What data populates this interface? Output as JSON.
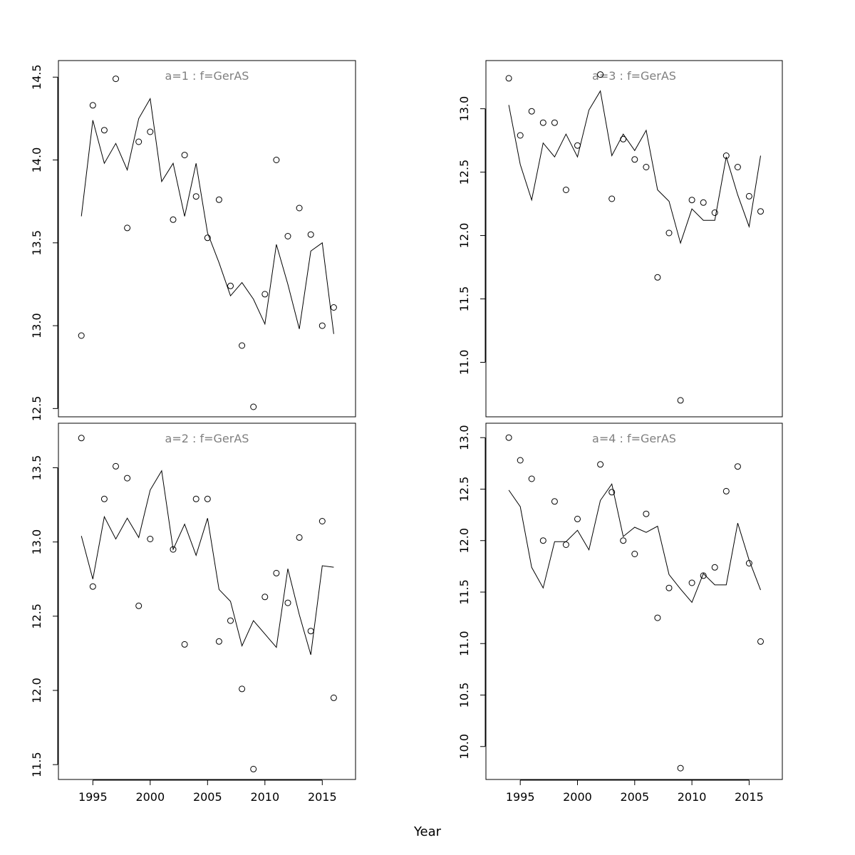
{
  "figure": {
    "xlabel": "Year"
  },
  "chart_data": [
    {
      "type": "line",
      "title": "a=1  :  f=GerAS",
      "x": [
        1994,
        1995,
        1996,
        1997,
        1998,
        1999,
        2000,
        2001,
        2002,
        2003,
        2004,
        2005,
        2006,
        2007,
        2008,
        2009,
        2010,
        2011,
        2012,
        2013,
        2014,
        2015,
        2016
      ],
      "series": [
        {
          "kind": "points",
          "points": [
            [
              1994,
              12.94
            ],
            [
              1995,
              14.33
            ],
            [
              1996,
              14.18
            ],
            [
              1997,
              14.49
            ],
            [
              1998,
              13.59
            ],
            [
              1999,
              14.11
            ],
            [
              2000,
              14.17
            ],
            [
              2002,
              13.64
            ],
            [
              2003,
              14.03
            ],
            [
              2004,
              13.78
            ],
            [
              2005,
              13.53
            ],
            [
              2006,
              13.76
            ],
            [
              2007,
              13.24
            ],
            [
              2008,
              12.88
            ],
            [
              2009,
              12.51
            ],
            [
              2010,
              13.19
            ],
            [
              2011,
              14.0
            ],
            [
              2012,
              13.54
            ],
            [
              2013,
              13.71
            ],
            [
              2014,
              13.55
            ],
            [
              2015,
              13.0
            ],
            [
              2016,
              13.11
            ]
          ]
        },
        {
          "kind": "line",
          "values": [
            13.66,
            14.24,
            13.98,
            14.1,
            13.94,
            14.25,
            14.37,
            13.87,
            13.98,
            13.66,
            13.98,
            13.56,
            13.38,
            13.18,
            13.26,
            13.16,
            13.01,
            13.49,
            13.25,
            12.98,
            13.45,
            13.5,
            12.95
          ]
        }
      ],
      "xlim": [
        1992.0,
        2017.9
      ],
      "ylim": [
        12.45,
        14.6
      ],
      "yticks": [
        12.5,
        13.0,
        13.5,
        14.0,
        14.5
      ],
      "ytick_labels": [
        "12.5",
        "13.0",
        "13.5",
        "14.0",
        "14.5"
      ],
      "xticks": [],
      "xtick_labels": []
    },
    {
      "type": "line",
      "title": "a=2  :  f=GerAS",
      "x": [
        1994,
        1995,
        1996,
        1997,
        1998,
        1999,
        2000,
        2001,
        2002,
        2003,
        2004,
        2005,
        2006,
        2007,
        2008,
        2009,
        2010,
        2011,
        2012,
        2013,
        2014,
        2015,
        2016
      ],
      "series": [
        {
          "kind": "points",
          "points": [
            [
              1994,
              13.7
            ],
            [
              1995,
              12.7
            ],
            [
              1996,
              13.29
            ],
            [
              1997,
              13.51
            ],
            [
              1998,
              13.43
            ],
            [
              1999,
              12.57
            ],
            [
              2000,
              13.02
            ],
            [
              2002,
              12.95
            ],
            [
              2003,
              12.31
            ],
            [
              2004,
              13.29
            ],
            [
              2005,
              13.29
            ],
            [
              2006,
              12.33
            ],
            [
              2007,
              12.47
            ],
            [
              2008,
              12.01
            ],
            [
              2009,
              11.47
            ],
            [
              2010,
              12.63
            ],
            [
              2011,
              12.79
            ],
            [
              2012,
              12.59
            ],
            [
              2013,
              13.03
            ],
            [
              2014,
              12.4
            ],
            [
              2015,
              13.14
            ],
            [
              2016,
              11.95
            ]
          ]
        },
        {
          "kind": "line",
          "values": [
            13.04,
            12.75,
            13.17,
            13.02,
            13.16,
            13.03,
            13.35,
            13.48,
            12.95,
            13.12,
            12.91,
            13.16,
            12.68,
            12.6,
            12.3,
            12.47,
            12.38,
            12.29,
            12.82,
            12.51,
            12.24,
            12.84,
            12.83
          ]
        }
      ],
      "xlim": [
        1992.0,
        2017.9
      ],
      "ylim": [
        11.4,
        13.8
      ],
      "yticks": [
        11.5,
        12.0,
        12.5,
        13.0,
        13.5
      ],
      "ytick_labels": [
        "11.5",
        "12.0",
        "12.5",
        "13.0",
        "13.5"
      ],
      "xticks": [
        1995,
        2000,
        2005,
        2010,
        2015
      ],
      "xtick_labels": [
        "1995",
        "2000",
        "2005",
        "2010",
        "2015"
      ]
    },
    {
      "type": "line",
      "title": "a=3  :  f=GerAS",
      "x": [
        1994,
        1995,
        1996,
        1997,
        1998,
        1999,
        2000,
        2001,
        2002,
        2003,
        2004,
        2005,
        2006,
        2007,
        2008,
        2009,
        2010,
        2011,
        2012,
        2013,
        2014,
        2015,
        2016
      ],
      "series": [
        {
          "kind": "points",
          "points": [
            [
              1994,
              13.24
            ],
            [
              1995,
              12.79
            ],
            [
              1996,
              12.98
            ],
            [
              1997,
              12.89
            ],
            [
              1998,
              12.89
            ],
            [
              1999,
              12.36
            ],
            [
              2000,
              12.71
            ],
            [
              2002,
              13.27
            ],
            [
              2003,
              12.29
            ],
            [
              2004,
              12.76
            ],
            [
              2005,
              12.6
            ],
            [
              2006,
              12.54
            ],
            [
              2007,
              11.67
            ],
            [
              2008,
              12.02
            ],
            [
              2009,
              10.7
            ],
            [
              2010,
              12.28
            ],
            [
              2011,
              12.26
            ],
            [
              2012,
              12.18
            ],
            [
              2013,
              12.63
            ],
            [
              2014,
              12.54
            ],
            [
              2015,
              12.31
            ],
            [
              2016,
              12.19
            ]
          ]
        },
        {
          "kind": "line",
          "values": [
            13.03,
            12.56,
            12.28,
            12.73,
            12.62,
            12.8,
            12.62,
            12.99,
            13.14,
            12.63,
            12.8,
            12.67,
            12.83,
            12.36,
            12.27,
            11.94,
            12.21,
            12.12,
            12.12,
            12.62,
            12.32,
            12.07,
            12.63
          ]
        }
      ],
      "xlim": [
        1992.0,
        2017.9
      ],
      "ylim": [
        10.57,
        13.38
      ],
      "yticks": [
        11.0,
        11.5,
        12.0,
        12.5,
        13.0
      ],
      "ytick_labels": [
        "11.0",
        "11.5",
        "12.0",
        "12.5",
        "13.0"
      ],
      "xticks": [],
      "xtick_labels": []
    },
    {
      "type": "line",
      "title": "a=4  :  f=GerAS",
      "x": [
        1994,
        1995,
        1996,
        1997,
        1998,
        1999,
        2000,
        2001,
        2002,
        2003,
        2004,
        2005,
        2006,
        2007,
        2008,
        2009,
        2010,
        2011,
        2012,
        2013,
        2014,
        2015,
        2016
      ],
      "series": [
        {
          "kind": "points",
          "points": [
            [
              1994,
              13.0
            ],
            [
              1995,
              12.78
            ],
            [
              1996,
              12.6
            ],
            [
              1997,
              12.0
            ],
            [
              1998,
              12.38
            ],
            [
              1999,
              11.96
            ],
            [
              2000,
              12.21
            ],
            [
              2002,
              12.74
            ],
            [
              2003,
              12.47
            ],
            [
              2004,
              12.0
            ],
            [
              2005,
              11.87
            ],
            [
              2006,
              12.26
            ],
            [
              2007,
              11.25
            ],
            [
              2008,
              11.54
            ],
            [
              2009,
              9.79
            ],
            [
              2010,
              11.59
            ],
            [
              2011,
              11.66
            ],
            [
              2012,
              11.74
            ],
            [
              2013,
              12.48
            ],
            [
              2014,
              12.72
            ],
            [
              2015,
              11.78
            ],
            [
              2016,
              11.02
            ]
          ]
        },
        {
          "kind": "line",
          "values": [
            12.49,
            12.33,
            11.74,
            11.54,
            11.99,
            11.99,
            12.1,
            11.91,
            12.39,
            12.55,
            12.04,
            12.13,
            12.08,
            12.14,
            11.67,
            11.53,
            11.4,
            11.68,
            11.57,
            11.57,
            12.17,
            11.81,
            11.52
          ]
        }
      ],
      "xlim": [
        1992.0,
        2017.9
      ],
      "ylim": [
        9.68,
        13.14
      ],
      "yticks": [
        10.0,
        10.5,
        11.0,
        11.5,
        12.0,
        12.5,
        13.0
      ],
      "ytick_labels": [
        "10.0",
        "10.5",
        "11.0",
        "11.5",
        "12.0",
        "12.5",
        "13.0"
      ],
      "xticks": [
        1995,
        2000,
        2005,
        2010,
        2015
      ],
      "xtick_labels": [
        "1995",
        "2000",
        "2005",
        "2010",
        "2015"
      ]
    }
  ]
}
